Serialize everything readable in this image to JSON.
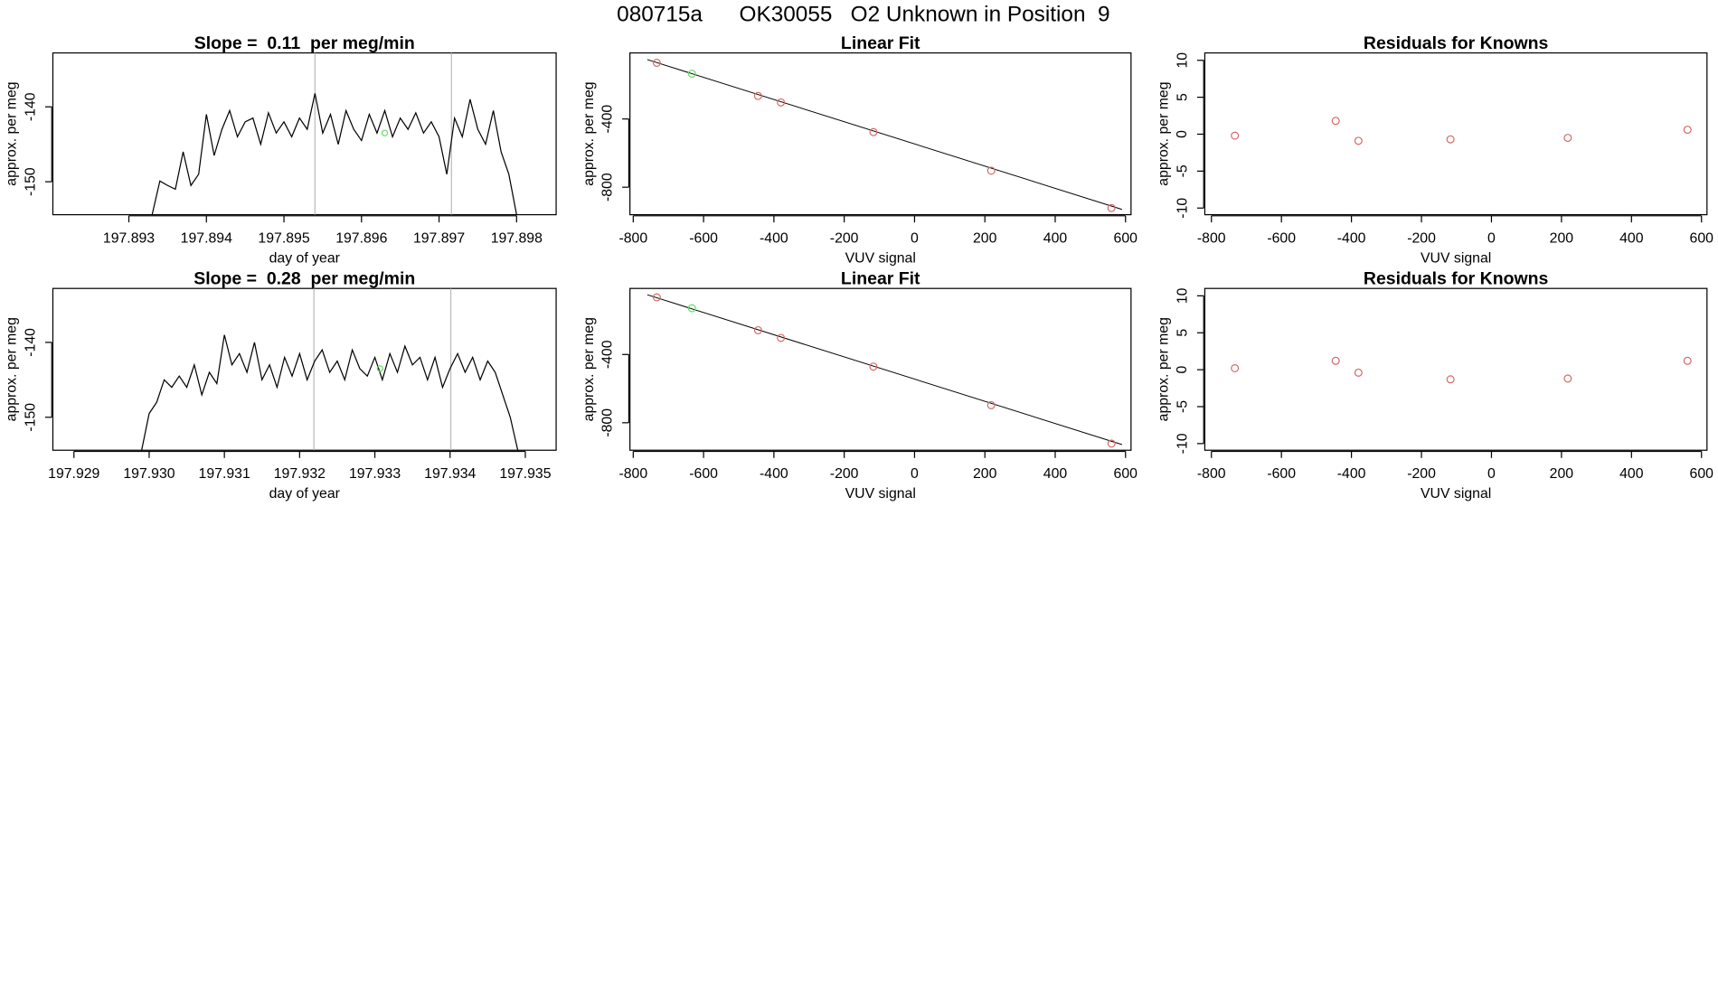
{
  "title": "080715a      OK30055   O2 Unknown in Position  9",
  "chart_data": [
    {
      "type": "line",
      "title": "Slope =  0.11  per meg/min",
      "xlabel": "day of year",
      "ylabel": "approx. per meg",
      "xlim": [
        197.89202,
        197.89851
      ],
      "ylim": [
        -154.4,
        -132.8
      ],
      "xticks": [
        197.893,
        197.894,
        197.895,
        197.896,
        197.897,
        197.898
      ],
      "yticks": [
        -150,
        -140
      ],
      "color": "#000000",
      "x": [
        197.8933,
        197.8934,
        197.8935,
        197.8936,
        197.8937,
        197.8938,
        197.8939,
        197.894,
        197.8941,
        197.8942,
        197.8943,
        197.8944,
        197.8945,
        197.8946,
        197.8947,
        197.8948,
        197.8949,
        197.895,
        197.8951,
        197.8952,
        197.8953,
        197.8954,
        197.8955,
        197.8956,
        197.8957,
        197.8958,
        197.8959,
        197.896,
        197.8961,
        197.8962,
        197.8963,
        197.8964,
        197.8965,
        197.8966,
        197.8967,
        197.8968,
        197.8969,
        197.897,
        197.8971,
        197.8972,
        197.8973,
        197.8974,
        197.8975,
        197.8976,
        197.8977,
        197.8978,
        197.8979,
        197.898
      ],
      "values": [
        -154.4,
        -149.9,
        -150.5,
        -151,
        -146,
        -150.5,
        -149,
        -141,
        -146.5,
        -143,
        -140.5,
        -144,
        -142,
        -141.5,
        -145,
        -140.8,
        -143.5,
        -142,
        -144,
        -141.5,
        -143,
        -138.2,
        -143.5,
        -141,
        -145,
        -140.5,
        -143,
        -144.5,
        -141,
        -143.5,
        -140.5,
        -144,
        -141.5,
        -143,
        -140.8,
        -143.5,
        -142,
        -144,
        -149,
        -141.5,
        -144,
        -139,
        -143,
        -145,
        -140.5,
        -146,
        -149,
        -154.4
      ],
      "vlines": {
        "color": "#bbbbbb",
        "x": [
          197.8954,
          197.89716
        ]
      },
      "highlight": {
        "color": "#66dd66",
        "x": [
          197.8963
        ],
        "values": [
          -143.5
        ]
      }
    },
    {
      "type": "scatter",
      "title": "Linear Fit",
      "xlabel": "VUV signal",
      "ylabel": "approx. per meg",
      "xlim": [
        -809.4,
        615.6
      ],
      "ylim": [
        -961,
        -13
      ],
      "xticks": [
        -800,
        -600,
        -400,
        -200,
        0,
        200,
        400,
        600
      ],
      "yticks": [
        -800,
        -400
      ],
      "series": [
        {
          "color": "#d46a6a",
          "x": [
            -733,
            -445,
            -380,
            -117,
            218,
            560
          ],
          "values": [
            -71,
            -265,
            -303,
            -477,
            -703,
            -922
          ]
        },
        {
          "color": "#66dd66",
          "x": [
            -633
          ],
          "values": [
            -135
          ]
        }
      ],
      "fit_line": {
        "color": "#000000",
        "x": [
          -760,
          590
        ],
        "values": [
          -52,
          -930
        ]
      }
    },
    {
      "type": "scatter",
      "title": "Residuals for Knowns",
      "xlabel": "VUV signal",
      "ylabel": "approx. per meg",
      "xlim": [
        -818.9,
        615.7
      ],
      "ylim": [
        -10.9,
        11
      ],
      "xticks": [
        -800,
        -600,
        -400,
        -200,
        0,
        200,
        400,
        600
      ],
      "yticks": [
        -10,
        -5,
        0,
        5,
        10
      ],
      "series": [
        {
          "color": "#d46a6a",
          "x": [
            -733,
            -445,
            -380,
            -117,
            218,
            560
          ],
          "values": [
            -0.2,
            1.8,
            -0.9,
            -0.7,
            -0.5,
            0.6
          ]
        }
      ]
    },
    {
      "type": "line",
      "title": "Slope =  0.28  per meg/min",
      "xlabel": "day of year",
      "ylabel": "approx. per meg",
      "xlim": [
        197.92872,
        197.93541
      ],
      "ylim": [
        -154.4,
        -132.8
      ],
      "xticks": [
        197.929,
        {
          "value": 197.93,
          "label": "197.930"
        },
        197.931,
        197.932,
        197.933,
        197.934,
        197.935
      ],
      "yticks": [
        -150,
        -140
      ],
      "color": "#000000",
      "x": [
        197.9299,
        197.93,
        197.9301,
        197.9302,
        197.9303,
        197.9304,
        197.9305,
        197.9306,
        197.9307,
        197.9308,
        197.9309,
        197.931,
        197.9311,
        197.9312,
        197.9313,
        197.9314,
        197.9315,
        197.9316,
        197.9317,
        197.9318,
        197.9319,
        197.932,
        197.9321,
        197.9322,
        197.9323,
        197.9324,
        197.9325,
        197.9326,
        197.9327,
        197.9328,
        197.9329,
        197.933,
        197.9331,
        197.9332,
        197.9333,
        197.9334,
        197.9335,
        197.9336,
        197.9337,
        197.9338,
        197.9339,
        197.934,
        197.9341,
        197.9342,
        197.9343,
        197.9344,
        197.9345,
        197.9346,
        197.9347,
        197.9348,
        197.9349
      ],
      "values": [
        -154.4,
        -149.5,
        -148,
        -145,
        -146,
        -144.5,
        -146,
        -143,
        -147,
        -144,
        -145.5,
        -139,
        -143,
        -141.5,
        -144,
        -140,
        -145,
        -143,
        -146,
        -142,
        -144.5,
        -141.5,
        -145,
        -142.5,
        -141,
        -144,
        -142.5,
        -145,
        -141,
        -143.5,
        -144.5,
        -142,
        -145,
        -141.5,
        -144,
        -140.5,
        -143,
        -142,
        -145,
        -142,
        -146,
        -143.5,
        -141.5,
        -144,
        -142,
        -145,
        -142.5,
        -144,
        -147,
        -150,
        -154.4
      ],
      "vlines": {
        "color": "#bbbbbb",
        "x": [
          197.93219,
          197.93401
        ]
      },
      "highlight": {
        "color": "#66dd66",
        "x": [
          197.93307
        ],
        "values": [
          -143.5
        ]
      }
    },
    {
      "type": "scatter",
      "title": "Linear Fit",
      "xlabel": "VUV signal",
      "ylabel": "approx. per meg",
      "xlim": [
        -809.4,
        615.6
      ],
      "ylim": [
        -961,
        -13
      ],
      "xticks": [
        -800,
        -600,
        -400,
        -200,
        0,
        200,
        400,
        600
      ],
      "yticks": [
        -800,
        -400
      ],
      "series": [
        {
          "color": "#d46a6a",
          "x": [
            -733,
            -445,
            -380,
            -117,
            218,
            560
          ],
          "values": [
            -65,
            -258,
            -303,
            -471,
            -697,
            -922
          ]
        },
        {
          "color": "#66dd66",
          "x": [
            -633
          ],
          "values": [
            -129
          ]
        }
      ],
      "fit_line": {
        "color": "#000000",
        "x": [
          -760,
          590
        ],
        "values": [
          -50,
          -928
        ]
      }
    },
    {
      "type": "scatter",
      "title": "Residuals for Knowns",
      "xlabel": "VUV signal",
      "ylabel": "approx. per meg",
      "xlim": [
        -818.9,
        615.7
      ],
      "ylim": [
        -10.9,
        11
      ],
      "xticks": [
        -800,
        -600,
        -400,
        -200,
        0,
        200,
        400,
        600
      ],
      "yticks": [
        -10,
        -5,
        0,
        5,
        10
      ],
      "series": [
        {
          "color": "#d46a6a",
          "x": [
            -733,
            -445,
            -380,
            -117,
            218,
            560
          ],
          "values": [
            0.2,
            1.2,
            -0.4,
            -1.3,
            -1.2,
            1.2
          ]
        }
      ]
    }
  ]
}
